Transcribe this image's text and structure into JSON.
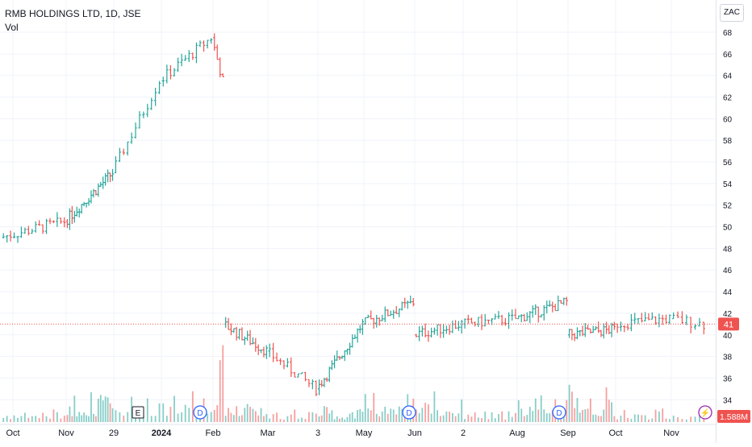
{
  "header": {
    "symbol_line": "RMB HOLDINGS LTD, 1D, JSE",
    "volume_label": "Vol",
    "currency_button": "ZAC"
  },
  "badges": {
    "last_price": "41",
    "last_volume": "1.588M",
    "earnings": "E",
    "dividend": "D",
    "split": "⚡"
  },
  "colors": {
    "up": "#26a69a",
    "down": "#ef5350",
    "up_volume": "#26a69a",
    "down_volume": "#ef5350",
    "last_price_line": "#ef5350",
    "earnings_border": "#131722",
    "dividend_border": "#2962ff",
    "split_border": "#9c27b0"
  },
  "chart_data": {
    "type": "ohlc",
    "yticks": [
      34,
      36,
      38,
      40,
      42,
      44,
      46,
      48,
      50,
      52,
      54,
      56,
      58,
      60,
      62,
      64,
      66,
      68
    ],
    "ylim": [
      32.2,
      69.7
    ],
    "x_tick_labels": [
      "Oct",
      "Nov",
      "29",
      "2024",
      "Feb",
      "Mar",
      "3",
      "May",
      "Jun",
      "2",
      "Aug",
      "Sep",
      "Oct",
      "Nov"
    ],
    "grid": true,
    "last_price": 41,
    "last_volume": "1.588M",
    "segments": [
      {
        "start": "Oct",
        "end": "Nov",
        "bars": 18,
        "from": 49,
        "to": 50.5,
        "vol": "low"
      },
      {
        "start": "Nov",
        "end": "29",
        "bars": 20,
        "from": 50.5,
        "to": 55,
        "vol": "mid"
      },
      {
        "start": "29",
        "end": "2024",
        "bars": 12,
        "from": 55,
        "to": 63.5,
        "vol": "mid"
      },
      {
        "start": "2024",
        "end": "Feb",
        "bars": 14,
        "from": 63.5,
        "to": 67.5,
        "vol": "mid"
      },
      {
        "start": "Feb",
        "end": "Feb",
        "bars": 4,
        "from": 67.5,
        "to": 63.5,
        "vol": "high"
      },
      {
        "start": "Feb",
        "end": "Mar",
        "bars": 16,
        "from": 41,
        "to": 38.5,
        "vol": "mid"
      },
      {
        "start": "Mar",
        "end": "3",
        "bars": 14,
        "from": 38.5,
        "to": 35,
        "vol": "low"
      },
      {
        "start": "3",
        "end": "May",
        "bars": 18,
        "from": 35,
        "to": 41,
        "vol": "low"
      },
      {
        "start": "May",
        "end": "Jun",
        "bars": 18,
        "from": 41,
        "to": 43,
        "vol": "mid"
      },
      {
        "start": "Jun",
        "end": "2",
        "bars": 16,
        "from": 40,
        "to": 41,
        "vol": "mid"
      },
      {
        "start": "2",
        "end": "Aug",
        "bars": 16,
        "from": 41,
        "to": 41.5,
        "vol": "low"
      },
      {
        "start": "Aug",
        "end": "Sep",
        "bars": 18,
        "from": 41.5,
        "to": 43,
        "vol": "mid"
      },
      {
        "start": "Sep",
        "end": "Oct",
        "bars": 18,
        "from": 40,
        "to": 40.5,
        "vol": "mid"
      },
      {
        "start": "Oct",
        "end": "Nov",
        "bars": 16,
        "from": 41,
        "to": 41.5,
        "vol": "low"
      },
      {
        "start": "Nov",
        "end": "end",
        "bars": 8,
        "from": 41.5,
        "to": 41,
        "vol": "low"
      }
    ],
    "events": [
      {
        "kind": "earnings",
        "label": "E",
        "at": "29"
      },
      {
        "kind": "dividend",
        "label": "D",
        "at": "Feb"
      },
      {
        "kind": "dividend",
        "label": "D",
        "at": "Jun"
      },
      {
        "kind": "dividend",
        "label": "D",
        "at": "Sep"
      },
      {
        "kind": "split",
        "label": "⚡",
        "at": "end"
      }
    ]
  }
}
